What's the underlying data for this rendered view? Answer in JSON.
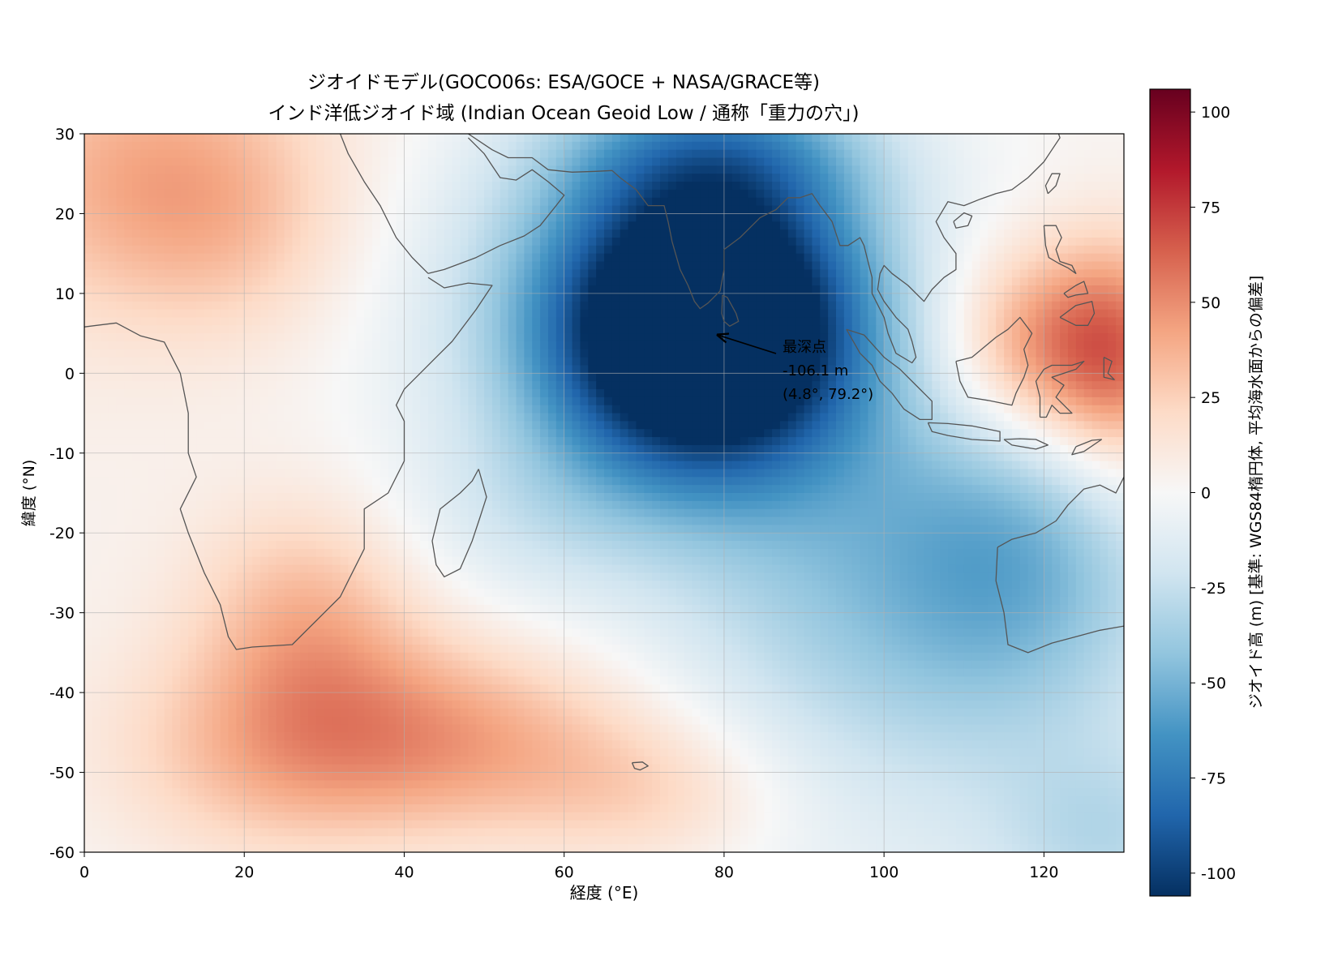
{
  "chart_data": {
    "type": "heatmap",
    "title": "ジオイドモデル(GOCO06s: ESA/GOCE + NASA/GRACE等)",
    "subtitle": "インド洋低ジオイド域 (Indian Ocean Geoid Low / 通称「重力の穴」)",
    "xlabel": "経度 (°E)",
    "ylabel": "緯度 (°N)",
    "xlim": [
      0,
      130
    ],
    "ylim": [
      -60,
      30
    ],
    "xticks": [
      0,
      20,
      40,
      60,
      80,
      100,
      120
    ],
    "yticks": [
      30,
      20,
      10,
      0,
      -10,
      -20,
      -30,
      -40,
      -50,
      -60
    ],
    "grid": true,
    "colormap": "RdBu_r",
    "colorbar": {
      "label": "ジオイド高 (m) [基準: WGS84楕円体, 平均海水面からの偏差]",
      "vmin": -106,
      "vmax": 106,
      "ticks": [
        100,
        75,
        50,
        25,
        0,
        -25,
        -50,
        -75,
        -100
      ]
    },
    "annotation": {
      "lines": [
        "最深点",
        "-106.1 m",
        "(4.8°, 79.2°)"
      ],
      "point": {
        "lon": 79.2,
        "lat": 4.8
      },
      "value": -106.1
    },
    "field_features": [
      {
        "lon": 78,
        "lat": 4,
        "amp": -118,
        "sx": 13,
        "sy": 12
      },
      {
        "lon": 70,
        "lat": 10,
        "amp": -32,
        "sx": 14,
        "sy": 16
      },
      {
        "lon": 86,
        "lat": 14,
        "amp": -28,
        "sx": 14,
        "sy": 12
      },
      {
        "lon": 80,
        "lat": 28,
        "amp": -45,
        "sx": 14,
        "sy": 7
      },
      {
        "lon": 58,
        "lat": 8,
        "amp": -18,
        "sx": 18,
        "sy": 18
      },
      {
        "lon": 55,
        "lat": -18,
        "amp": -12,
        "sx": 12,
        "sy": 8
      },
      {
        "lon": 100,
        "lat": -24,
        "amp": -40,
        "sx": 20,
        "sy": 20
      },
      {
        "lon": 118,
        "lat": -24,
        "amp": -28,
        "sx": 12,
        "sy": 14
      },
      {
        "lon": 128,
        "lat": -58,
        "amp": -22,
        "sx": 10,
        "sy": 8
      },
      {
        "lon": 122,
        "lat": 3,
        "amp": 62,
        "sx": 10,
        "sy": 9
      },
      {
        "lon": 130,
        "lat": 0,
        "amp": 28,
        "sx": 6,
        "sy": 12
      },
      {
        "lon": 8,
        "lat": 24,
        "amp": 32,
        "sx": 14,
        "sy": 12
      },
      {
        "lon": 20,
        "lat": 18,
        "amp": 12,
        "sx": 10,
        "sy": 10
      },
      {
        "lon": 28,
        "lat": -30,
        "amp": 30,
        "sx": 10,
        "sy": 10
      },
      {
        "lon": 45,
        "lat": -46,
        "amp": 42,
        "sx": 18,
        "sy": 9
      },
      {
        "lon": 22,
        "lat": -48,
        "amp": 22,
        "sx": 14,
        "sy": 10
      },
      {
        "lon": 72,
        "lat": -53,
        "amp": 20,
        "sx": 12,
        "sy": 7
      }
    ],
    "coastlines": {
      "africa": [
        [
          0,
          5.8
        ],
        [
          4,
          6.3
        ],
        [
          7,
          4.7
        ],
        [
          10,
          3.9
        ],
        [
          12,
          0
        ],
        [
          13,
          -5
        ],
        [
          13,
          -10
        ],
        [
          14,
          -13
        ],
        [
          12,
          -17
        ],
        [
          13,
          -20
        ],
        [
          15,
          -25
        ],
        [
          17,
          -29
        ],
        [
          18,
          -33
        ],
        [
          19,
          -34.6
        ],
        [
          21,
          -34.3
        ],
        [
          26,
          -34
        ],
        [
          29,
          -31
        ],
        [
          32,
          -28
        ],
        [
          33,
          -26
        ],
        [
          35,
          -22
        ],
        [
          35,
          -17
        ],
        [
          38,
          -15
        ],
        [
          40,
          -11
        ],
        [
          40,
          -6
        ],
        [
          39,
          -4
        ],
        [
          40,
          -2
        ],
        [
          42,
          0
        ],
        [
          44,
          2
        ],
        [
          46,
          4
        ],
        [
          49,
          8
        ],
        [
          51,
          11
        ],
        [
          48,
          11.3
        ],
        [
          45,
          10.7
        ],
        [
          43,
          12
        ]
      ],
      "arabia": [
        [
          43,
          12.5
        ],
        [
          45,
          13
        ],
        [
          49,
          14.5
        ],
        [
          52,
          16
        ],
        [
          55,
          17.2
        ],
        [
          57,
          18.5
        ],
        [
          59,
          21
        ],
        [
          60,
          22.3
        ],
        [
          58,
          24
        ],
        [
          56,
          25.5
        ],
        [
          54,
          24.2
        ],
        [
          52,
          24.5
        ],
        [
          51,
          26
        ],
        [
          50,
          27.5
        ],
        [
          48,
          29.5
        ]
      ],
      "red_sea_west": [
        [
          43,
          12.5
        ],
        [
          41,
          14.5
        ],
        [
          39,
          17
        ],
        [
          37,
          21
        ],
        [
          35,
          24
        ],
        [
          33,
          27.5
        ],
        [
          32,
          30
        ]
      ],
      "iran": [
        [
          48,
          30
        ],
        [
          51,
          28
        ],
        [
          53,
          27
        ],
        [
          56,
          27
        ],
        [
          58,
          25.5
        ],
        [
          61,
          25.2
        ],
        [
          64,
          25.3
        ],
        [
          66,
          25.4
        ],
        [
          67,
          24.5
        ]
      ],
      "india": [
        [
          67,
          24.5
        ],
        [
          69,
          23
        ],
        [
          70.5,
          21
        ],
        [
          72.5,
          21
        ],
        [
          73,
          19
        ],
        [
          73.5,
          16.5
        ],
        [
          74.5,
          13
        ],
        [
          75.5,
          11
        ],
        [
          76.3,
          9
        ],
        [
          77,
          8.1
        ],
        [
          78,
          8.8
        ],
        [
          79.5,
          10.3
        ],
        [
          80,
          13
        ],
        [
          80,
          15.5
        ],
        [
          82,
          17
        ],
        [
          84.5,
          19.5
        ],
        [
          86.5,
          20.5
        ],
        [
          88,
          22
        ],
        [
          89.5,
          22
        ],
        [
          91,
          22.5
        ],
        [
          92,
          21
        ]
      ],
      "burma": [
        [
          92,
          21
        ],
        [
          93.5,
          19
        ],
        [
          94.5,
          16
        ],
        [
          95.5,
          16
        ],
        [
          97,
          17
        ],
        [
          97.5,
          16
        ],
        [
          98,
          14
        ],
        [
          98.5,
          12
        ],
        [
          98.5,
          10
        ],
        [
          100,
          7
        ],
        [
          100.5,
          5
        ],
        [
          101.5,
          2.5
        ],
        [
          103.5,
          1.3
        ],
        [
          104,
          2
        ],
        [
          103.5,
          4
        ],
        [
          103,
          5.5
        ],
        [
          101.5,
          7
        ],
        [
          100,
          9
        ],
        [
          99.2,
          10.5
        ],
        [
          99.5,
          12.5
        ],
        [
          100,
          13.5
        ],
        [
          101,
          12.5
        ],
        [
          103,
          11
        ],
        [
          105,
          9
        ],
        [
          106,
          10.5
        ],
        [
          107.5,
          12
        ],
        [
          109,
          13
        ],
        [
          109,
          15
        ],
        [
          107.5,
          17
        ],
        [
          106.5,
          19
        ],
        [
          108,
          21.5
        ],
        [
          110,
          21
        ],
        [
          112,
          21.8
        ],
        [
          114,
          22.5
        ],
        [
          116,
          23
        ],
        [
          118,
          24.5
        ],
        [
          120,
          26.5
        ],
        [
          121,
          28
        ],
        [
          122,
          29.5
        ],
        [
          121.5,
          31
        ]
      ],
      "sri_lanka": [
        [
          79.8,
          9.8
        ],
        [
          80.4,
          9.5
        ],
        [
          81.5,
          7.5
        ],
        [
          81.8,
          6.5
        ],
        [
          80.7,
          5.9
        ],
        [
          80,
          6.5
        ],
        [
          79.7,
          7.5
        ],
        [
          79.8,
          9.8
        ]
      ],
      "sumatra": [
        [
          95.3,
          5.5
        ],
        [
          97.5,
          4.8
        ],
        [
          100,
          2
        ],
        [
          102,
          0.5
        ],
        [
          104.5,
          -2
        ],
        [
          106,
          -3.5
        ],
        [
          106,
          -5.8
        ],
        [
          104.5,
          -5.8
        ],
        [
          102.5,
          -4.5
        ],
        [
          101,
          -2.5
        ],
        [
          99.5,
          -1
        ],
        [
          98.5,
          1
        ],
        [
          97,
          2.5
        ],
        [
          95.3,
          5.5
        ]
      ],
      "java": [
        [
          105.5,
          -6.2
        ],
        [
          108,
          -6.3
        ],
        [
          111,
          -6.6
        ],
        [
          114.5,
          -7.3
        ],
        [
          114.5,
          -8.5
        ],
        [
          111,
          -8.3
        ],
        [
          108,
          -7.8
        ],
        [
          106,
          -7.3
        ],
        [
          105.5,
          -6.2
        ]
      ],
      "lesser_sunda": [
        [
          115,
          -8.3
        ],
        [
          117,
          -8.2
        ],
        [
          119,
          -8.3
        ],
        [
          120.5,
          -9
        ],
        [
          119,
          -9.5
        ],
        [
          116,
          -9
        ],
        [
          115,
          -8.3
        ]
      ],
      "timor": [
        [
          124,
          -9.2
        ],
        [
          126,
          -8.4
        ],
        [
          127.2,
          -8.3
        ],
        [
          125,
          -9.8
        ],
        [
          123.5,
          -10.2
        ],
        [
          124,
          -9.2
        ]
      ],
      "borneo": [
        [
          109,
          1.5
        ],
        [
          109.5,
          -1
        ],
        [
          110.5,
          -3
        ],
        [
          113,
          -3.4
        ],
        [
          116,
          -4
        ],
        [
          116.5,
          -2.5
        ],
        [
          117.5,
          -0.5
        ],
        [
          118,
          1
        ],
        [
          117.5,
          3
        ],
        [
          118.5,
          5
        ],
        [
          117,
          7
        ],
        [
          115.5,
          5.5
        ],
        [
          114,
          4.5
        ],
        [
          111,
          2
        ],
        [
          109,
          1.5
        ]
      ],
      "sulawesi": [
        [
          119.5,
          -5.5
        ],
        [
          119.5,
          -3
        ],
        [
          119,
          -1
        ],
        [
          120,
          0.5
        ],
        [
          121,
          1
        ],
        [
          123.5,
          1
        ],
        [
          125,
          1.5
        ],
        [
          124,
          0.5
        ],
        [
          121,
          -0.5
        ],
        [
          122.5,
          -1.5
        ],
        [
          121.5,
          -3
        ],
        [
          123.5,
          -5
        ],
        [
          122,
          -5
        ],
        [
          121,
          -4
        ],
        [
          120.3,
          -5.5
        ],
        [
          119.5,
          -5.5
        ]
      ],
      "philippines_luzon": [
        [
          120,
          18.5
        ],
        [
          121.5,
          18.5
        ],
        [
          122.2,
          17
        ],
        [
          121.5,
          15.5
        ],
        [
          122,
          14
        ],
        [
          123.5,
          13.5
        ],
        [
          124,
          12.5
        ],
        [
          123,
          13.2
        ],
        [
          121.8,
          13.8
        ],
        [
          120.6,
          14.5
        ],
        [
          120.2,
          16
        ],
        [
          120,
          18.5
        ]
      ],
      "philippines_mindanao": [
        [
          122,
          7
        ],
        [
          124,
          8.5
        ],
        [
          126,
          9
        ],
        [
          126.3,
          7.5
        ],
        [
          125.5,
          6
        ],
        [
          124,
          6
        ],
        [
          122,
          7
        ]
      ],
      "philippines_mid": [
        [
          122.5,
          10
        ],
        [
          124,
          11
        ],
        [
          125,
          11.5
        ],
        [
          125.5,
          10
        ],
        [
          124,
          9.8
        ],
        [
          123,
          9.5
        ],
        [
          122.5,
          10
        ]
      ],
      "halmahera": [
        [
          127.5,
          2
        ],
        [
          128.5,
          1.5
        ],
        [
          128,
          0
        ],
        [
          128.8,
          -0.8
        ],
        [
          127.5,
          -0.5
        ],
        [
          127.5,
          2
        ]
      ],
      "new_guinea_west": [
        [
          131,
          -1
        ],
        [
          130,
          -2.5
        ],
        [
          132,
          -3.5
        ],
        [
          130,
          -3.5
        ],
        [
          131,
          -1
        ]
      ],
      "taiwan": [
        [
          120.5,
          22.5
        ],
        [
          121.5,
          23.5
        ],
        [
          122,
          25
        ],
        [
          121,
          25
        ],
        [
          120.2,
          23.5
        ],
        [
          120.5,
          22.5
        ]
      ],
      "hainan": [
        [
          108.7,
          19
        ],
        [
          110,
          20.1
        ],
        [
          111,
          19.7
        ],
        [
          110.5,
          18.5
        ],
        [
          109,
          18.2
        ],
        [
          108.7,
          19
        ]
      ],
      "madagascar": [
        [
          49.3,
          -12
        ],
        [
          50.3,
          -15.5
        ],
        [
          49.5,
          -18
        ],
        [
          48.5,
          -21
        ],
        [
          47,
          -24.5
        ],
        [
          45,
          -25.5
        ],
        [
          44,
          -24
        ],
        [
          43.5,
          -21
        ],
        [
          44.5,
          -17
        ],
        [
          47,
          -15
        ],
        [
          48.5,
          -13.5
        ],
        [
          49.3,
          -12
        ]
      ],
      "australia": [
        [
          114.2,
          -21.8
        ],
        [
          114,
          -26
        ],
        [
          115,
          -30
        ],
        [
          115.5,
          -34
        ],
        [
          118,
          -35
        ],
        [
          121,
          -33.8
        ],
        [
          124,
          -33
        ],
        [
          127,
          -32.2
        ],
        [
          131,
          -31.5
        ]
      ],
      "australia_north": [
        [
          114.2,
          -21.8
        ],
        [
          116,
          -20.8
        ],
        [
          119,
          -20
        ],
        [
          121.5,
          -18.5
        ],
        [
          123,
          -16.5
        ],
        [
          125,
          -14.5
        ],
        [
          127,
          -14
        ],
        [
          129,
          -15
        ],
        [
          130,
          -13
        ],
        [
          131,
          -12.2
        ]
      ],
      "kerguelen": [
        [
          68.5,
          -48.8
        ],
        [
          69.8,
          -48.7
        ],
        [
          70.5,
          -49.2
        ],
        [
          69.5,
          -49.7
        ],
        [
          68.8,
          -49.5
        ],
        [
          68.5,
          -48.8
        ]
      ]
    }
  }
}
